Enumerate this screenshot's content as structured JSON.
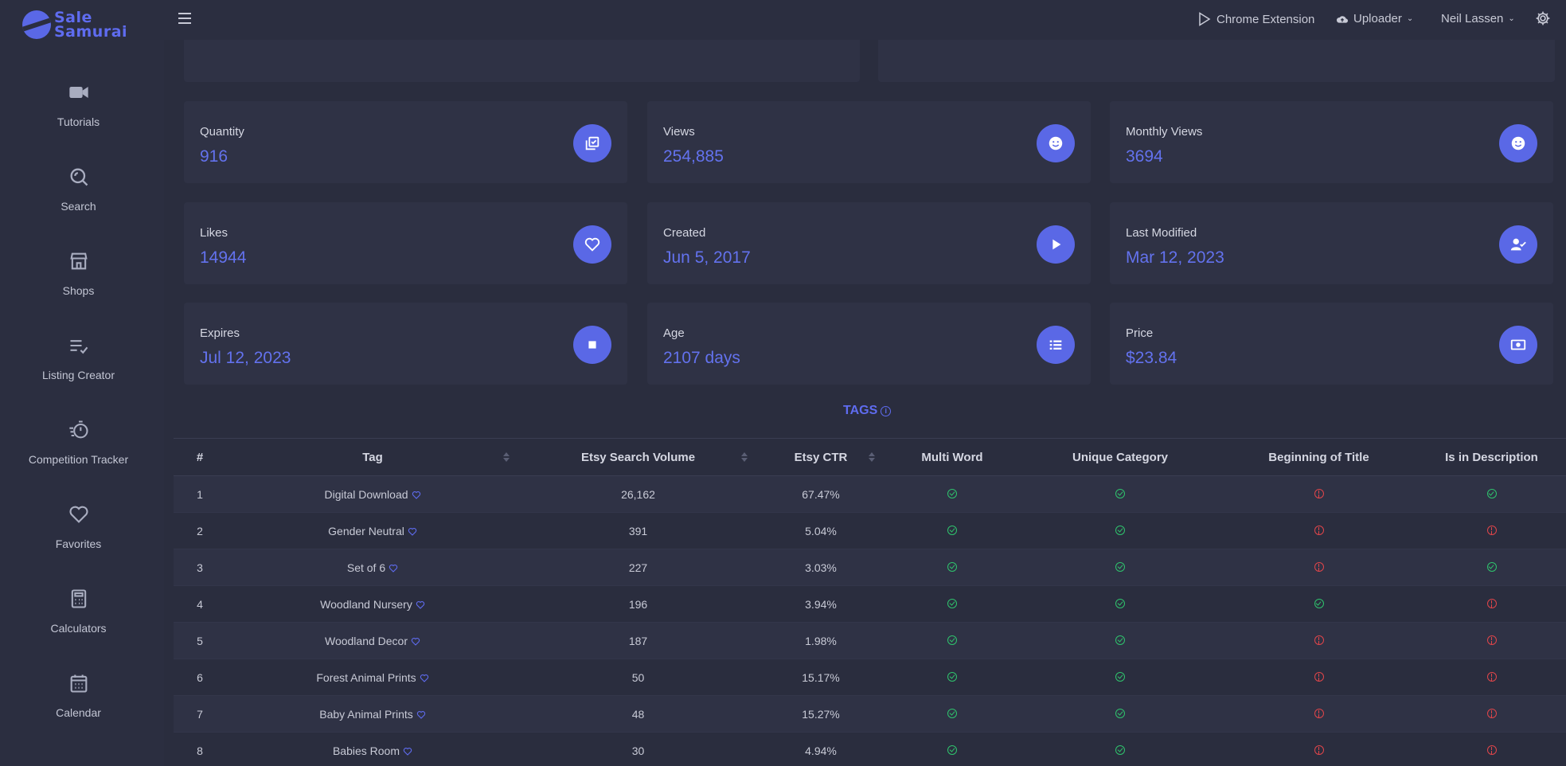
{
  "app": {
    "logo_line1": "Sale",
    "logo_line2": "Samurai"
  },
  "sidebar": {
    "items": [
      {
        "label": "Tutorials",
        "icon": "video-camera-icon"
      },
      {
        "label": "Search",
        "icon": "search-icon"
      },
      {
        "label": "Shops",
        "icon": "store-icon"
      },
      {
        "label": "Listing Creator",
        "icon": "list-check-icon"
      },
      {
        "label": "Competition Tracker",
        "icon": "stopwatch-icon"
      },
      {
        "label": "Favorites",
        "icon": "heart-icon"
      },
      {
        "label": "Calculators",
        "icon": "calculator-icon"
      },
      {
        "label": "Calendar",
        "icon": "calendar-icon"
      }
    ]
  },
  "topbar": {
    "chrome_extension": "Chrome Extension",
    "uploader": "Uploader",
    "user": "Neil Lassen"
  },
  "stats": [
    {
      "label": "Quantity",
      "value": "916",
      "icon": "checkbox-stack-icon"
    },
    {
      "label": "Views",
      "value": "254,885",
      "icon": "smiley-icon"
    },
    {
      "label": "Monthly Views",
      "value": "3694",
      "icon": "smiley-icon"
    },
    {
      "label": "Likes",
      "value": "14944",
      "icon": "heart-icon"
    },
    {
      "label": "Created",
      "value": "Jun 5, 2017",
      "icon": "play-icon"
    },
    {
      "label": "Last Modified",
      "value": "Mar 12, 2023",
      "icon": "user-check-icon"
    },
    {
      "label": "Expires",
      "value": "Jul 12, 2023",
      "icon": "stop-icon"
    },
    {
      "label": "Age",
      "value": "2107 days",
      "icon": "list-icon"
    },
    {
      "label": "Price",
      "value": "$23.84",
      "icon": "money-icon"
    }
  ],
  "tags": {
    "title": "TAGS",
    "columns": [
      "#",
      "Tag",
      "Etsy Search Volume",
      "Etsy CTR",
      "Multi Word",
      "Unique Category",
      "Beginning of Title",
      "Is in Description"
    ],
    "rows": [
      {
        "num": "1",
        "tag": "Digital Download",
        "volume": "26,162",
        "ctr": "67.47%",
        "multi": true,
        "unique": true,
        "begin": false,
        "desc": true
      },
      {
        "num": "2",
        "tag": "Gender Neutral",
        "volume": "391",
        "ctr": "5.04%",
        "multi": true,
        "unique": true,
        "begin": false,
        "desc": false
      },
      {
        "num": "3",
        "tag": "Set of 6",
        "volume": "227",
        "ctr": "3.03%",
        "multi": true,
        "unique": true,
        "begin": false,
        "desc": true
      },
      {
        "num": "4",
        "tag": "Woodland Nursery",
        "volume": "196",
        "ctr": "3.94%",
        "multi": true,
        "unique": true,
        "begin": true,
        "desc": false
      },
      {
        "num": "5",
        "tag": "Woodland Decor",
        "volume": "187",
        "ctr": "1.98%",
        "multi": true,
        "unique": true,
        "begin": false,
        "desc": false
      },
      {
        "num": "6",
        "tag": "Forest Animal Prints",
        "volume": "50",
        "ctr": "15.17%",
        "multi": true,
        "unique": true,
        "begin": false,
        "desc": false
      },
      {
        "num": "7",
        "tag": "Baby Animal Prints",
        "volume": "48",
        "ctr": "15.27%",
        "multi": true,
        "unique": true,
        "begin": false,
        "desc": false
      },
      {
        "num": "8",
        "tag": "Babies Room",
        "volume": "30",
        "ctr": "4.94%",
        "multi": true,
        "unique": true,
        "begin": false,
        "desc": false
      }
    ]
  },
  "colors": {
    "accent": "#5a68e6",
    "ok": "#2fc46d",
    "bad": "#e0454a",
    "background": "#2a2d3e"
  }
}
